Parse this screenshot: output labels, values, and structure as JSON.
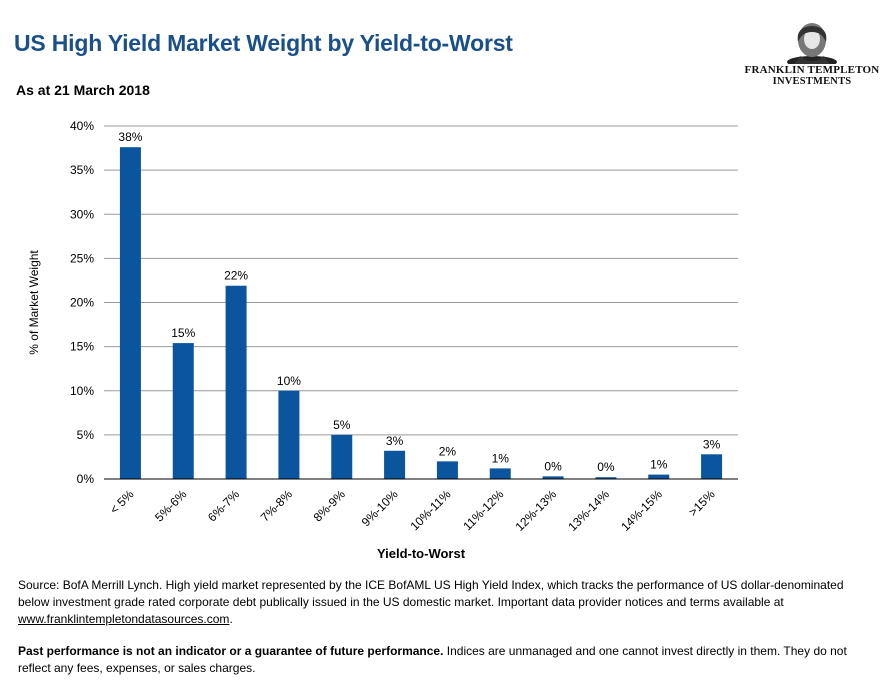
{
  "header": {
    "title": "US High Yield Market Weight by Yield-to-Worst",
    "subtitle": "As at 21 March 2018"
  },
  "logo": {
    "line1": "FRANKLIN TEMPLETON",
    "line2": "INVESTMENTS",
    "icon": "franklin-portrait-icon"
  },
  "chart_data": {
    "type": "bar",
    "categories": [
      "< 5%",
      "5%-6%",
      "6%-7%",
      "7%-8%",
      "8%-9%",
      "9%-10%",
      "10%-11%",
      "11%-12%",
      "12%-13%",
      "13%-14%",
      "14%-15%",
      ">15%"
    ],
    "values": [
      37.6,
      15.4,
      21.9,
      10.0,
      5.0,
      3.2,
      2.0,
      1.2,
      0.3,
      0.2,
      0.5,
      2.8
    ],
    "value_labels": [
      "38%",
      "15%",
      "22%",
      "10%",
      "5%",
      "3%",
      "2%",
      "1%",
      "0%",
      "0%",
      "1%",
      "3%"
    ],
    "title": "US High Yield Market Weight by Yield-to-Worst",
    "xlabel": "Yield-to-Worst",
    "ylabel": "% of Market Weight",
    "ylim": [
      0,
      40
    ],
    "yticks": [
      0,
      5,
      10,
      15,
      20,
      25,
      30,
      35,
      40
    ],
    "ytick_labels": [
      "0%",
      "5%",
      "10%",
      "15%",
      "20%",
      "25%",
      "30%",
      "35%",
      "40%"
    ],
    "grid": true,
    "bar_color": "#0b559e"
  },
  "footer": {
    "source_text": "Source: BofA Merrill Lynch. High yield market represented by the ICE BofAML US High Yield Index, which tracks the performance of US dollar-denominated below investment grade rated corporate debt publically issued in the US domestic market. Important data provider notices and terms available at",
    "source_link": "www.franklintempletondatasources.com",
    "source_end": ".",
    "disclaimer_bold": "Past performance is not an indicator or a guarantee of future performance.",
    "disclaimer_rest": " Indices are unmanaged and one cannot invest directly in them. They do not reflect any fees, expenses, or sales charges."
  }
}
